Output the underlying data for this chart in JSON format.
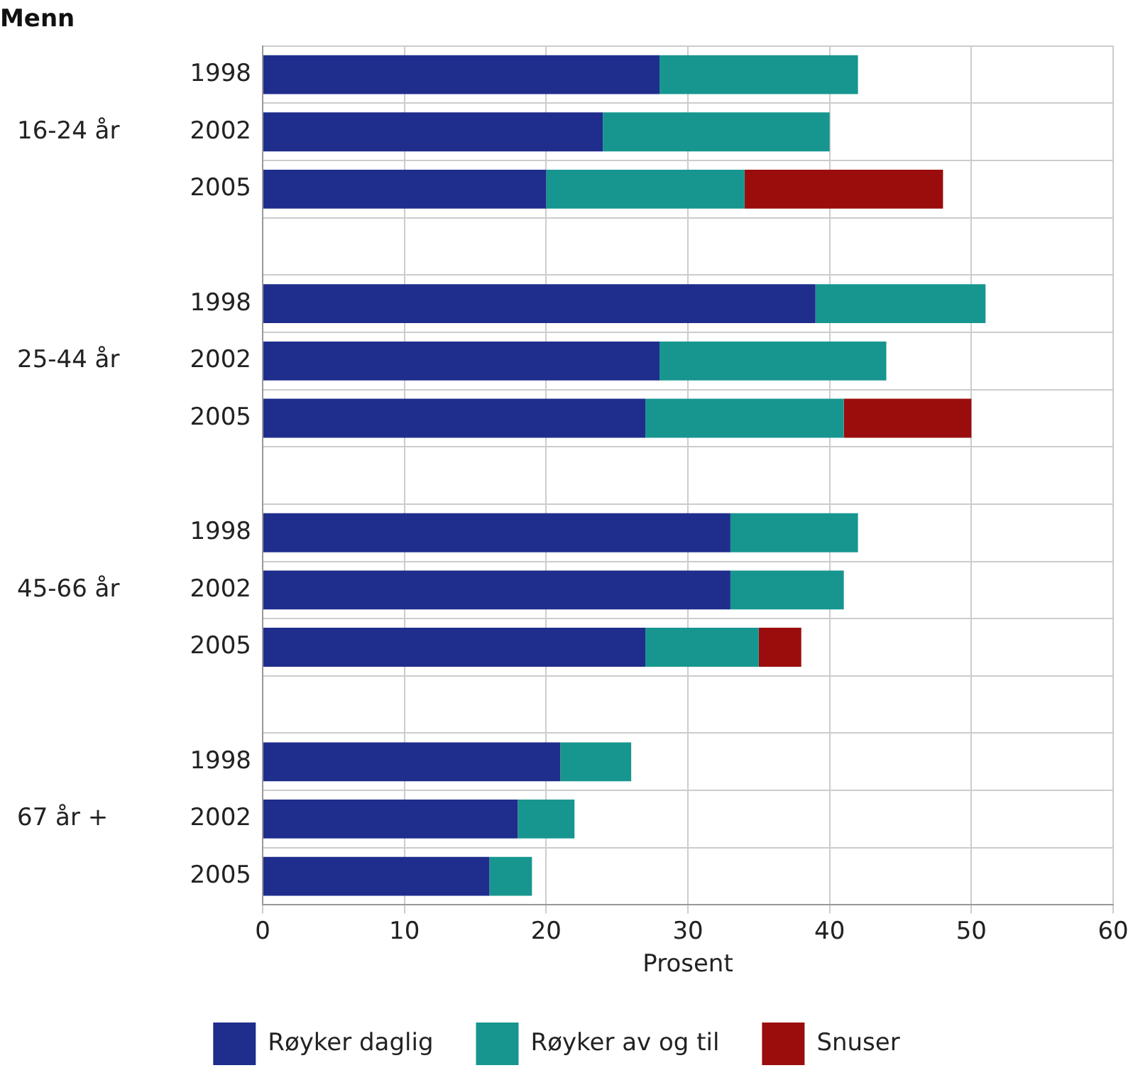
{
  "chart_data": {
    "type": "bar",
    "orientation": "horizontal",
    "stacked": true,
    "title": "Menn",
    "xlabel": "Prosent",
    "categories": [
      "1998",
      "2002",
      "2005",
      null,
      "1998",
      "2002",
      "2005",
      null,
      "1998",
      "2002",
      "2005",
      null,
      "1998",
      "2002",
      "2005"
    ],
    "annotations": [
      "16-24 år",
      "25-44 år",
      "45-66 år",
      "67 år +"
    ],
    "series": [
      {
        "name": "Røyker daglig",
        "color": "#1f2d8c",
        "values": [
          28,
          24,
          20,
          null,
          39,
          28,
          27,
          null,
          33,
          33,
          27,
          null,
          21,
          18,
          16
        ]
      },
      {
        "name": "Røyker av og til",
        "color": "#17968f",
        "values": [
          14,
          16,
          14,
          null,
          12,
          16,
          14,
          null,
          9,
          8,
          8,
          null,
          5,
          4,
          3
        ]
      },
      {
        "name": "Snuser",
        "color": "#9b0d0d",
        "values": [
          null,
          null,
          14,
          null,
          null,
          null,
          9,
          null,
          null,
          null,
          3,
          null,
          null,
          null,
          null
        ]
      }
    ],
    "xlim": [
      0,
      60
    ],
    "xticks": [
      0,
      10,
      20,
      30,
      40,
      50,
      60
    ],
    "grid": true,
    "legend": "bottom"
  }
}
